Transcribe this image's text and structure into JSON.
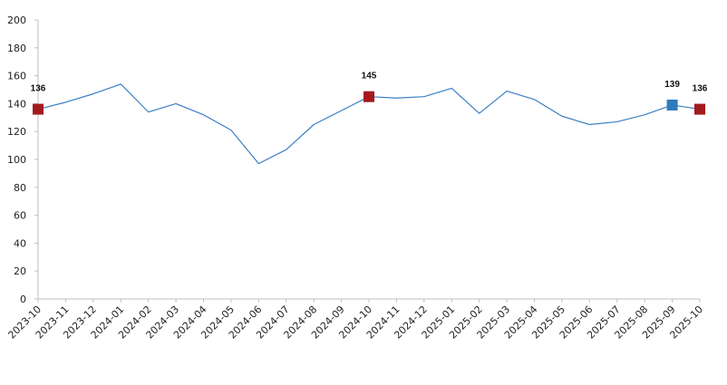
{
  "chart_data": {
    "type": "line",
    "title": "",
    "xlabel": "",
    "ylabel": "",
    "ylim": [
      0,
      200
    ],
    "y_ticks": [
      0,
      20,
      40,
      60,
      80,
      100,
      120,
      140,
      160,
      180,
      200
    ],
    "grid": false,
    "x": [
      "2023-10",
      "2023-11",
      "2023-12",
      "2024-01",
      "2024-02",
      "2024-03",
      "2024-04",
      "2024-05",
      "2024-06",
      "2024-07",
      "2024-08",
      "2024-09",
      "2024-10",
      "2024-11",
      "2024-12",
      "2025-01",
      "2025-02",
      "2025-03",
      "2025-04",
      "2025-05",
      "2025-06",
      "2025-07",
      "2025-08",
      "2025-09",
      "2025-10"
    ],
    "series": [
      {
        "values": [
          136,
          141,
          147,
          154,
          134,
          140,
          132,
          121,
          97,
          107,
          125,
          135,
          145,
          144,
          145,
          151,
          133,
          149,
          143,
          131,
          125,
          127,
          132,
          139,
          136
        ],
        "color": "#3a7fc1"
      }
    ],
    "markers": [
      {
        "index": 0,
        "label": "136",
        "color": "#a31a1e",
        "shape": "square"
      },
      {
        "index": 12,
        "label": "145",
        "color": "#a31a1e",
        "shape": "square"
      },
      {
        "index": 23,
        "label": "139",
        "color": "#2e7bbf",
        "shape": "square"
      },
      {
        "index": 24,
        "label": "136",
        "color": "#a31a1e",
        "shape": "square"
      }
    ],
    "axis_color": "#bfbfbf"
  }
}
